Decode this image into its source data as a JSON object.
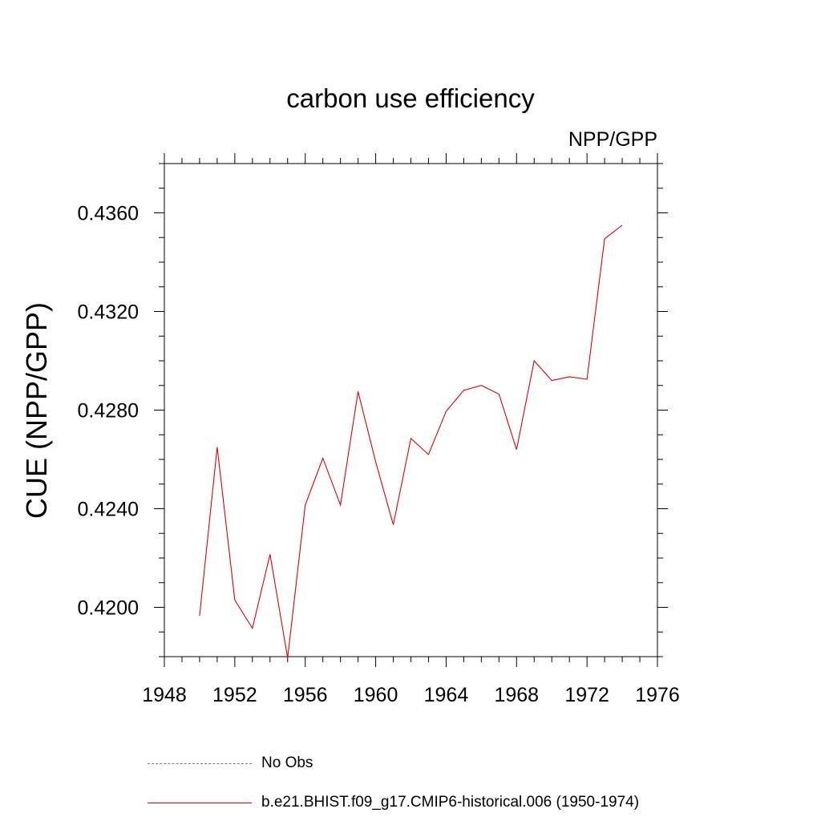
{
  "chart_data": {
    "type": "line",
    "title": "carbon use efficiency",
    "subtitle": "NPP/GPP",
    "ylabel": "CUE  (NPP/GPP)",
    "xlabel": "",
    "xlim": [
      1948,
      1976
    ],
    "ylim": [
      0.418,
      0.438
    ],
    "x_ticks": [
      1948,
      1952,
      1956,
      1960,
      1964,
      1968,
      1972,
      1976
    ],
    "y_ticks": [
      "0.4200",
      "0.4240",
      "0.4280",
      "0.4320",
      "0.4360"
    ],
    "grid": false,
    "legend_position": "bottom",
    "series": [
      {
        "name": "No Obs",
        "color": "#7070b8",
        "style": "dashed",
        "x": [],
        "y": []
      },
      {
        "name": "b.e21.BHIST.f09_g17.CMIP6-historical.006 (1950-1974)",
        "color": "#e00000",
        "style": "solid",
        "x": [
          1950,
          1951,
          1952,
          1953,
          1954,
          1955,
          1956,
          1957,
          1958,
          1959,
          1960,
          1961,
          1962,
          1963,
          1964,
          1965,
          1966,
          1967,
          1968,
          1969,
          1970,
          1971,
          1972,
          1973,
          1974
        ],
        "y": [
          0.41965,
          0.4265,
          0.4203,
          0.41915,
          0.42215,
          0.41795,
          0.42415,
          0.42605,
          0.42415,
          0.42875,
          0.4259,
          0.42335,
          0.42685,
          0.4262,
          0.42795,
          0.4288,
          0.429,
          0.42865,
          0.4264,
          0.43,
          0.4292,
          0.42935,
          0.42925,
          0.43495,
          0.4355
        ]
      }
    ]
  }
}
